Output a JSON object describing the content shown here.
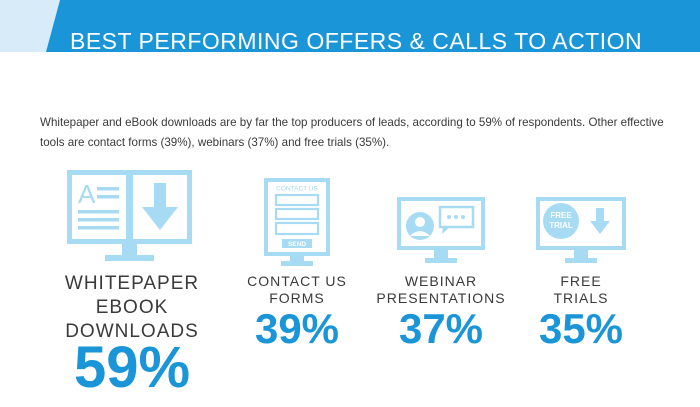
{
  "header": {
    "title": "BEST PERFORMING OFFERS & CALLS TO ACTION"
  },
  "intro": "Whitepaper and eBook downloads are by far the top producers of leads, according to 59% of respondents. Other effective tools are contact forms (39%), webinars (37%) and free trials (35%).",
  "colors": {
    "accent": "#1a95d8",
    "icon_light": "#a6dbf3",
    "text": "#3a3a3a"
  },
  "offers": [
    {
      "label_lines": [
        "WHITEPAPER",
        "EBOOK",
        "DOWNLOADS"
      ],
      "percent": "59%",
      "icon": "document-download-monitor-icon"
    },
    {
      "label_lines": [
        "CONTACT US",
        "FORMS"
      ],
      "percent": "39%",
      "icon": "contact-form-monitor-icon",
      "form_title": "CONTACT US",
      "form_button": "SEND"
    },
    {
      "label_lines": [
        "WEBINAR",
        "PRESENTATIONS"
      ],
      "percent": "37%",
      "icon": "webinar-monitor-icon"
    },
    {
      "label_lines": [
        "FREE",
        "TRIALS"
      ],
      "percent": "35%",
      "icon": "free-trial-monitor-icon",
      "badge_lines": [
        "FREE",
        "TRIAL"
      ]
    }
  ]
}
